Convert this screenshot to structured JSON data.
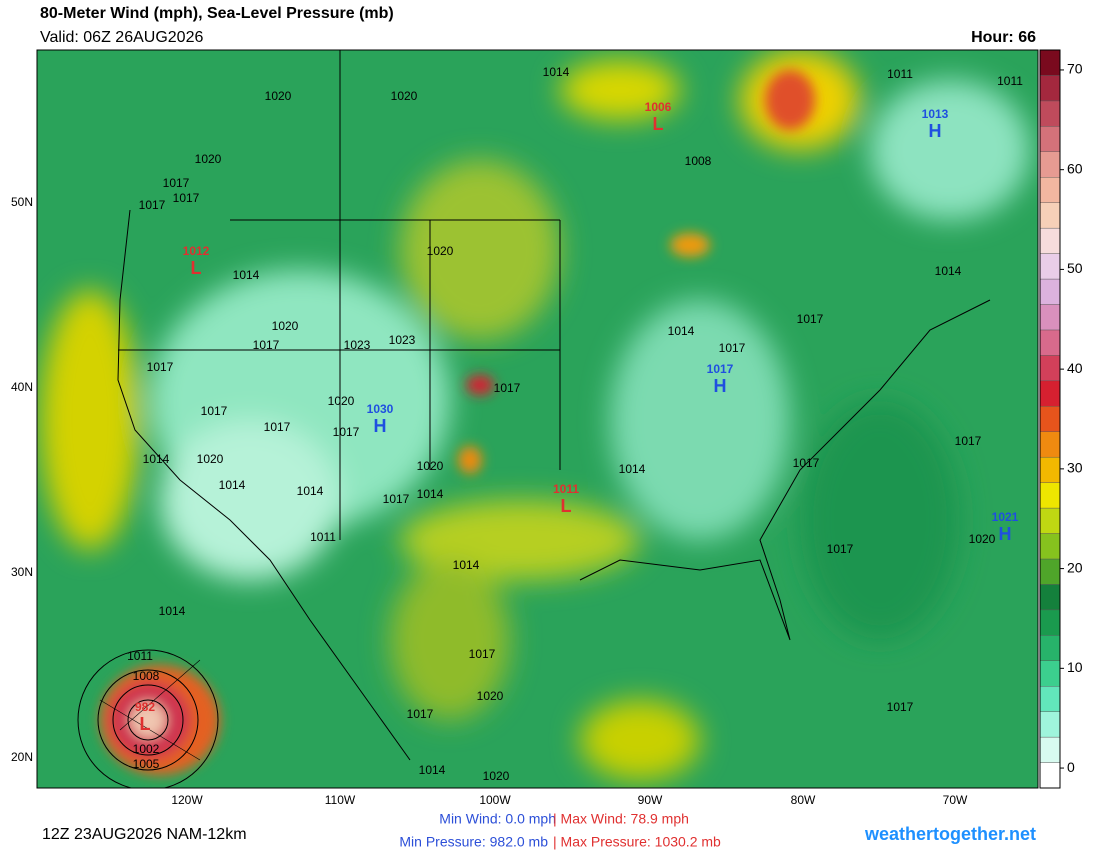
{
  "header": {
    "title": "80-Meter Wind (mph), Sea-Level Pressure (mb)",
    "valid": "Valid: 06Z 26AUG2026",
    "hour": "Hour: 66"
  },
  "map": {
    "lat_labels": [
      "50N",
      "40N",
      "30N",
      "20N"
    ],
    "lon_labels": [
      "120W",
      "110W",
      "100W",
      "90W",
      "80W",
      "70W"
    ],
    "pressure_centers": [
      {
        "type": "L",
        "value": 1006
      },
      {
        "type": "H",
        "value": 1013
      },
      {
        "type": "L",
        "value": 1012
      },
      {
        "type": "H",
        "value": 1030
      },
      {
        "type": "H",
        "value": 1017
      },
      {
        "type": "L",
        "value": 1011
      },
      {
        "type": "H",
        "value": 1021
      },
      {
        "type": "L",
        "value": 982
      }
    ],
    "isobar_labels": [
      1014,
      1011,
      1011,
      1020,
      1020,
      1020,
      1017,
      1017,
      1017,
      1008,
      1014,
      1020,
      1014,
      1020,
      1017,
      1023,
      1023,
      1014,
      1017,
      1017,
      1017,
      1017,
      1017,
      1020,
      1017,
      1017,
      1017,
      1014,
      1020,
      1020,
      1014,
      1017,
      1014,
      1014,
      1017,
      1014,
      1011,
      1017,
      1020,
      1014,
      1014,
      1011,
      1008,
      1002,
      1005,
      1017,
      1020,
      1017,
      1017,
      1014,
      1020
    ]
  },
  "colorbar": {
    "range": [
      -2,
      72
    ],
    "ticks": [
      0,
      10,
      20,
      30,
      40,
      50,
      60,
      70
    ],
    "colors": [
      "#ffffff",
      "#d8fbf0",
      "#9ff5dc",
      "#62e6bb",
      "#3ccf8e",
      "#27b36a",
      "#1a9a4e",
      "#14803c",
      "#4fa52a",
      "#86c21e",
      "#bfd812",
      "#eee600",
      "#f3b800",
      "#ef8a10",
      "#e6541c",
      "#d62030",
      "#d2405a",
      "#d86a8c",
      "#d990bd",
      "#dcb2de",
      "#e9cde8",
      "#f6dcdc",
      "#f6d0b8",
      "#f2b7a0",
      "#e69b92",
      "#d4727a",
      "#bf4b5c",
      "#a3283e",
      "#7a0a1e"
    ]
  },
  "footer": {
    "run": "12Z 23AUG2026 NAM-12km",
    "min_wind": "Min Wind:   0.0 mph",
    "max_wind": "| Max Wind: 78.9 mph",
    "min_pressure": "Min Pressure: 982.0 mb",
    "max_pressure": "| Max Pressure: 1030.2 mb",
    "site": "weathertogether.net"
  }
}
